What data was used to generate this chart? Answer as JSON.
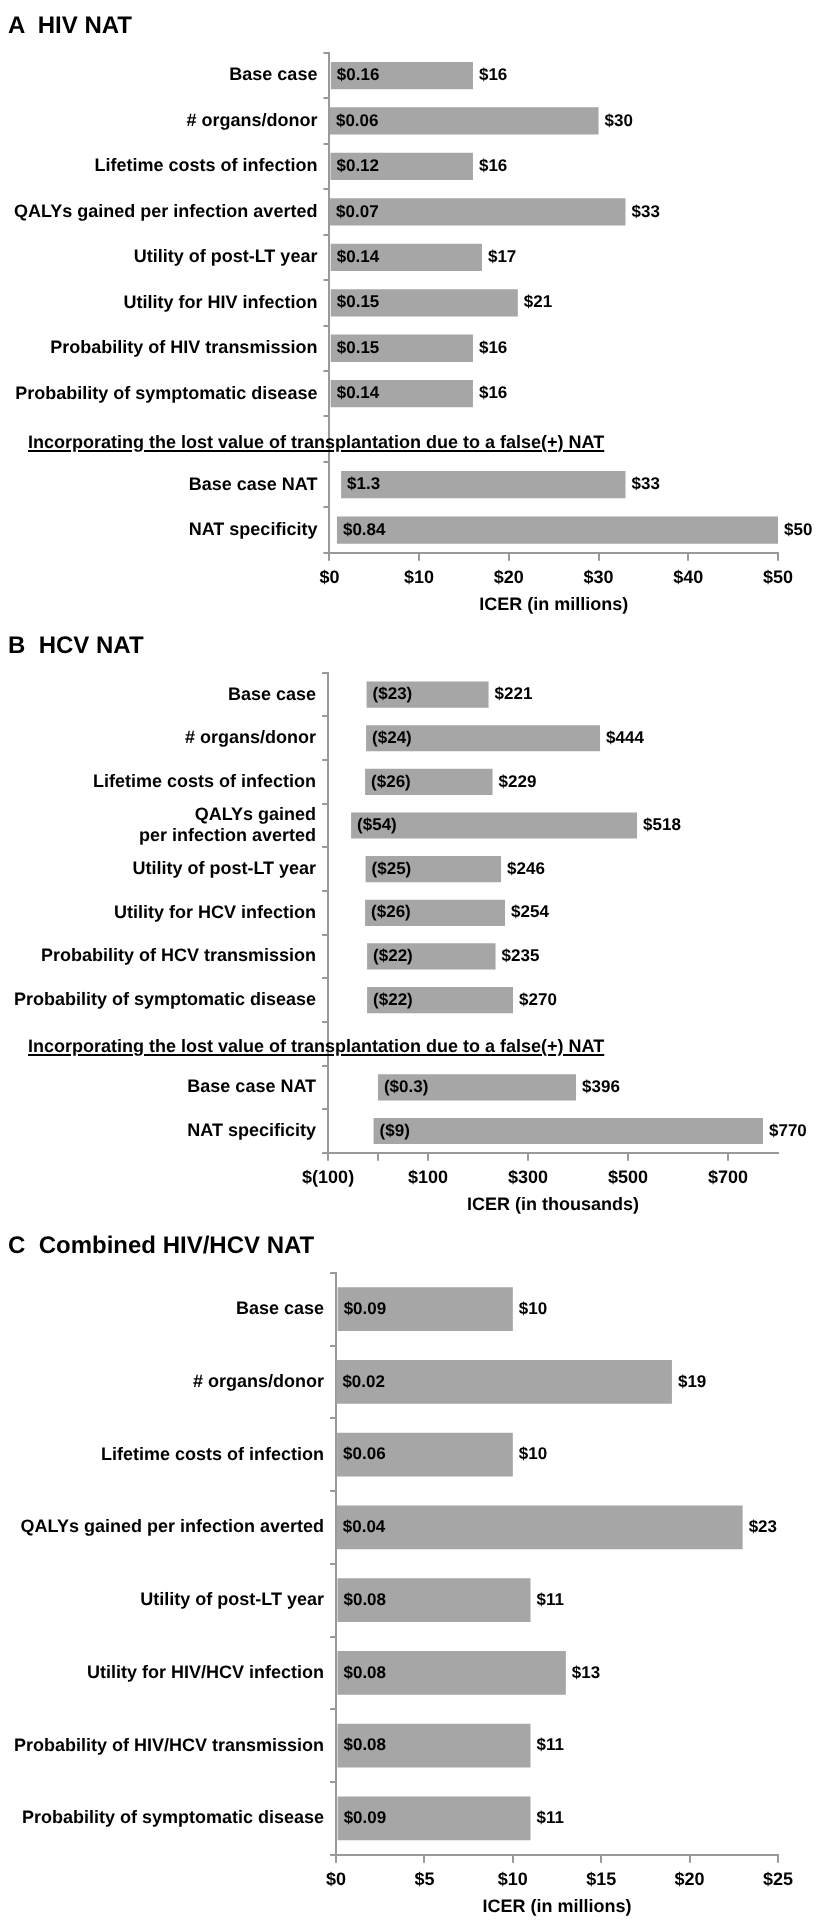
{
  "chart_data": [
    {
      "type": "bar",
      "orientation": "horizontal",
      "title": "A  HIV NAT",
      "xlabel": "ICER (in millions)",
      "categories": [
        "Base case",
        "# organs/donor",
        "Lifetime costs of infection",
        "QALYs gained per infection averted",
        "Utility of post-LT year",
        "Utility for HIV infection",
        "Probability of HIV transmission",
        "Probability of symptomatic disease",
        null,
        "Base case NAT",
        "NAT specificity"
      ],
      "base": [
        0.16,
        0.06,
        0.12,
        0.07,
        0.14,
        0.15,
        0.15,
        0.14,
        null,
        1.3,
        0.84
      ],
      "values": [
        15.84,
        29.94,
        15.88,
        32.93,
        16.86,
        20.85,
        15.85,
        15.86,
        null,
        31.7,
        49.16
      ],
      "color": "#a6a6a6",
      "xlim": [
        0,
        50
      ],
      "xticks": [
        {
          "value": 0,
          "label": "$0"
        },
        {
          "value": 10,
          "label": "$10"
        },
        {
          "value": 20,
          "label": "$20"
        },
        {
          "value": 30,
          "label": "$30"
        },
        {
          "value": 40,
          "label": "$40"
        },
        {
          "value": 50,
          "label": "$50"
        }
      ],
      "grid": false,
      "legend": false,
      "annotations": [
        "Incorporating the lost value of transplantation due to a false(+) NAT",
        {
          "text": "$0.16",
          "x": 0.16,
          "y": "Base case"
        },
        {
          "text": "$16",
          "x": 16,
          "y": "Base case"
        },
        {
          "text": "$0.06",
          "x": 0.06,
          "y": "# organs/donor"
        },
        {
          "text": "$30",
          "x": 30,
          "y": "# organs/donor"
        },
        {
          "text": "$0.12",
          "x": 0.12,
          "y": "Lifetime costs of infection"
        },
        {
          "text": "$16",
          "x": 16,
          "y": "Lifetime costs of infection"
        },
        {
          "text": "$0.07",
          "x": 0.07,
          "y": "QALYs gained per infection averted"
        },
        {
          "text": "$33",
          "x": 33,
          "y": "QALYs gained per infection averted"
        },
        {
          "text": "$0.14",
          "x": 0.14,
          "y": "Utility of post-LT year"
        },
        {
          "text": "$17",
          "x": 17,
          "y": "Utility of post-LT year"
        },
        {
          "text": "$0.15",
          "x": 0.15,
          "y": "Utility for HIV infection"
        },
        {
          "text": "$21",
          "x": 21,
          "y": "Utility for HIV infection"
        },
        {
          "text": "$0.15",
          "x": 0.15,
          "y": "Probability of HIV transmission"
        },
        {
          "text": "$16",
          "x": 16,
          "y": "Probability of HIV transmission"
        },
        {
          "text": "$0.14",
          "x": 0.14,
          "y": "Probability of symptomatic disease"
        },
        {
          "text": "$16",
          "x": 16,
          "y": "Probability of symptomatic disease"
        },
        {
          "text": "$1.3",
          "x": 1.3,
          "y": "Base case NAT"
        },
        {
          "text": "$33",
          "x": 33,
          "y": "Base case NAT"
        },
        {
          "text": "$0.84",
          "x": 0.84,
          "y": "NAT specificity"
        },
        {
          "text": "$50",
          "x": 50,
          "y": "NAT specificity"
        }
      ]
    },
    {
      "type": "bar",
      "orientation": "horizontal",
      "title": "B  HCV NAT",
      "xlabel": "ICER (in thousands)",
      "categories": [
        "Base case",
        "# organs/donor",
        "Lifetime costs of infection",
        "QALYs gained\nper infection averted",
        "Utility of post-LT year",
        "Utility for HCV infection",
        "Probability of HCV transmission",
        "Probability of symptomatic disease",
        null,
        "Base case NAT",
        "NAT specificity"
      ],
      "base": [
        -23,
        -24,
        -26,
        -54,
        -25,
        -26,
        -22,
        -22,
        null,
        -0.3,
        -9
      ],
      "values": [
        244,
        468,
        255,
        572,
        271,
        280,
        257,
        292,
        null,
        396.3,
        779
      ],
      "color": "#a6a6a6",
      "xlim": [
        -100,
        800
      ],
      "xticks": [
        {
          "value": -100,
          "label": "$(100)"
        },
        {
          "value": 0,
          "label": null
        },
        {
          "value": 100,
          "label": "$100"
        },
        {
          "value": 300,
          "label": "$300"
        },
        {
          "value": 500,
          "label": "$500"
        },
        {
          "value": 700,
          "label": "$700"
        }
      ],
      "grid": false,
      "legend": false,
      "annotations": [
        "Incorporating the lost value of transplantation due to a false(+) NAT",
        {
          "text": "($23)",
          "x": -23,
          "y": "Base case"
        },
        {
          "text": "$221",
          "x": 221,
          "y": "Base case"
        },
        {
          "text": "($24)",
          "x": -24,
          "y": "# organs/donor"
        },
        {
          "text": "$444",
          "x": 444,
          "y": "# organs/donor"
        },
        {
          "text": "($26)",
          "x": -26,
          "y": "Lifetime costs of infection"
        },
        {
          "text": "$229",
          "x": 229,
          "y": "Lifetime costs of infection"
        },
        {
          "text": "($54)",
          "x": -54,
          "y": "QALYs gained\nper infection averted"
        },
        {
          "text": "$518",
          "x": 518,
          "y": "QALYs gained\nper infection averted"
        },
        {
          "text": "($25)",
          "x": -25,
          "y": "Utility of post-LT year"
        },
        {
          "text": "$246",
          "x": 246,
          "y": "Utility of post-LT year"
        },
        {
          "text": "($26)",
          "x": -26,
          "y": "Utility for HCV infection"
        },
        {
          "text": "$254",
          "x": 254,
          "y": "Utility for HCV infection"
        },
        {
          "text": "($22)",
          "x": -22,
          "y": "Probability of HCV transmission"
        },
        {
          "text": "$235",
          "x": 235,
          "y": "Probability of HCV transmission"
        },
        {
          "text": "($22)",
          "x": -22,
          "y": "Probability of symptomatic disease"
        },
        {
          "text": "$270",
          "x": 270,
          "y": "Probability of symptomatic disease"
        },
        {
          "text": "($0.3)",
          "x": -0.3,
          "y": "Base case NAT"
        },
        {
          "text": "$396",
          "x": 396,
          "y": "Base case NAT"
        },
        {
          "text": "($9)",
          "x": -9,
          "y": "NAT specificity"
        },
        {
          "text": "$770",
          "x": 770,
          "y": "NAT specificity"
        }
      ]
    },
    {
      "type": "bar",
      "orientation": "horizontal",
      "title": "C  Combined HIV/HCV NAT",
      "xlabel": "ICER (in millions)",
      "categories": [
        "Base case",
        "# organs/donor",
        "Lifetime costs of infection",
        "QALYs gained per infection averted",
        "Utility of post-LT year",
        "Utility for HIV/HCV infection",
        "Probability of HIV/HCV transmission",
        "Probability of symptomatic disease"
      ],
      "base": [
        0.09,
        0.02,
        0.06,
        0.04,
        0.08,
        0.08,
        0.08,
        0.09
      ],
      "values": [
        9.91,
        18.98,
        9.94,
        22.96,
        10.92,
        12.92,
        10.92,
        10.91
      ],
      "color": "#a6a6a6",
      "xlim": [
        0,
        25
      ],
      "xticks": [
        {
          "value": 0,
          "label": "$0"
        },
        {
          "value": 5,
          "label": "$5"
        },
        {
          "value": 10,
          "label": "$10"
        },
        {
          "value": 15,
          "label": "$15"
        },
        {
          "value": 20,
          "label": "$20"
        },
        {
          "value": 25,
          "label": "$25"
        }
      ],
      "grid": false,
      "legend": false,
      "annotations": [
        {
          "text": "$0.09",
          "x": 0.09,
          "y": "Base case"
        },
        {
          "text": "$10",
          "x": 10,
          "y": "Base case"
        },
        {
          "text": "$0.02",
          "x": 0.02,
          "y": "# organs/donor"
        },
        {
          "text": "$19",
          "x": 19,
          "y": "# organs/donor"
        },
        {
          "text": "$0.06",
          "x": 0.06,
          "y": "Lifetime costs of infection"
        },
        {
          "text": "$10",
          "x": 10,
          "y": "Lifetime costs of infection"
        },
        {
          "text": "$0.04",
          "x": 0.04,
          "y": "QALYs gained per infection averted"
        },
        {
          "text": "$23",
          "x": 23,
          "y": "QALYs gained per infection averted"
        },
        {
          "text": "$0.08",
          "x": 0.08,
          "y": "Utility of post-LT year"
        },
        {
          "text": "$11",
          "x": 11,
          "y": "Utility of post-LT year"
        },
        {
          "text": "$0.08",
          "x": 0.08,
          "y": "Utility for HIV/HCV infection"
        },
        {
          "text": "$13",
          "x": 13,
          "y": "Utility for HIV/HCV infection"
        },
        {
          "text": "$0.08",
          "x": 0.08,
          "y": "Probability of HIV/HCV transmission"
        },
        {
          "text": "$11",
          "x": 11,
          "y": "Probability of HIV/HCV transmission"
        },
        {
          "text": "$0.09",
          "x": 0.09,
          "y": "Probability of symptomatic disease"
        },
        {
          "text": "$11",
          "x": 11,
          "y": "Probability of symptomatic disease"
        }
      ]
    }
  ]
}
